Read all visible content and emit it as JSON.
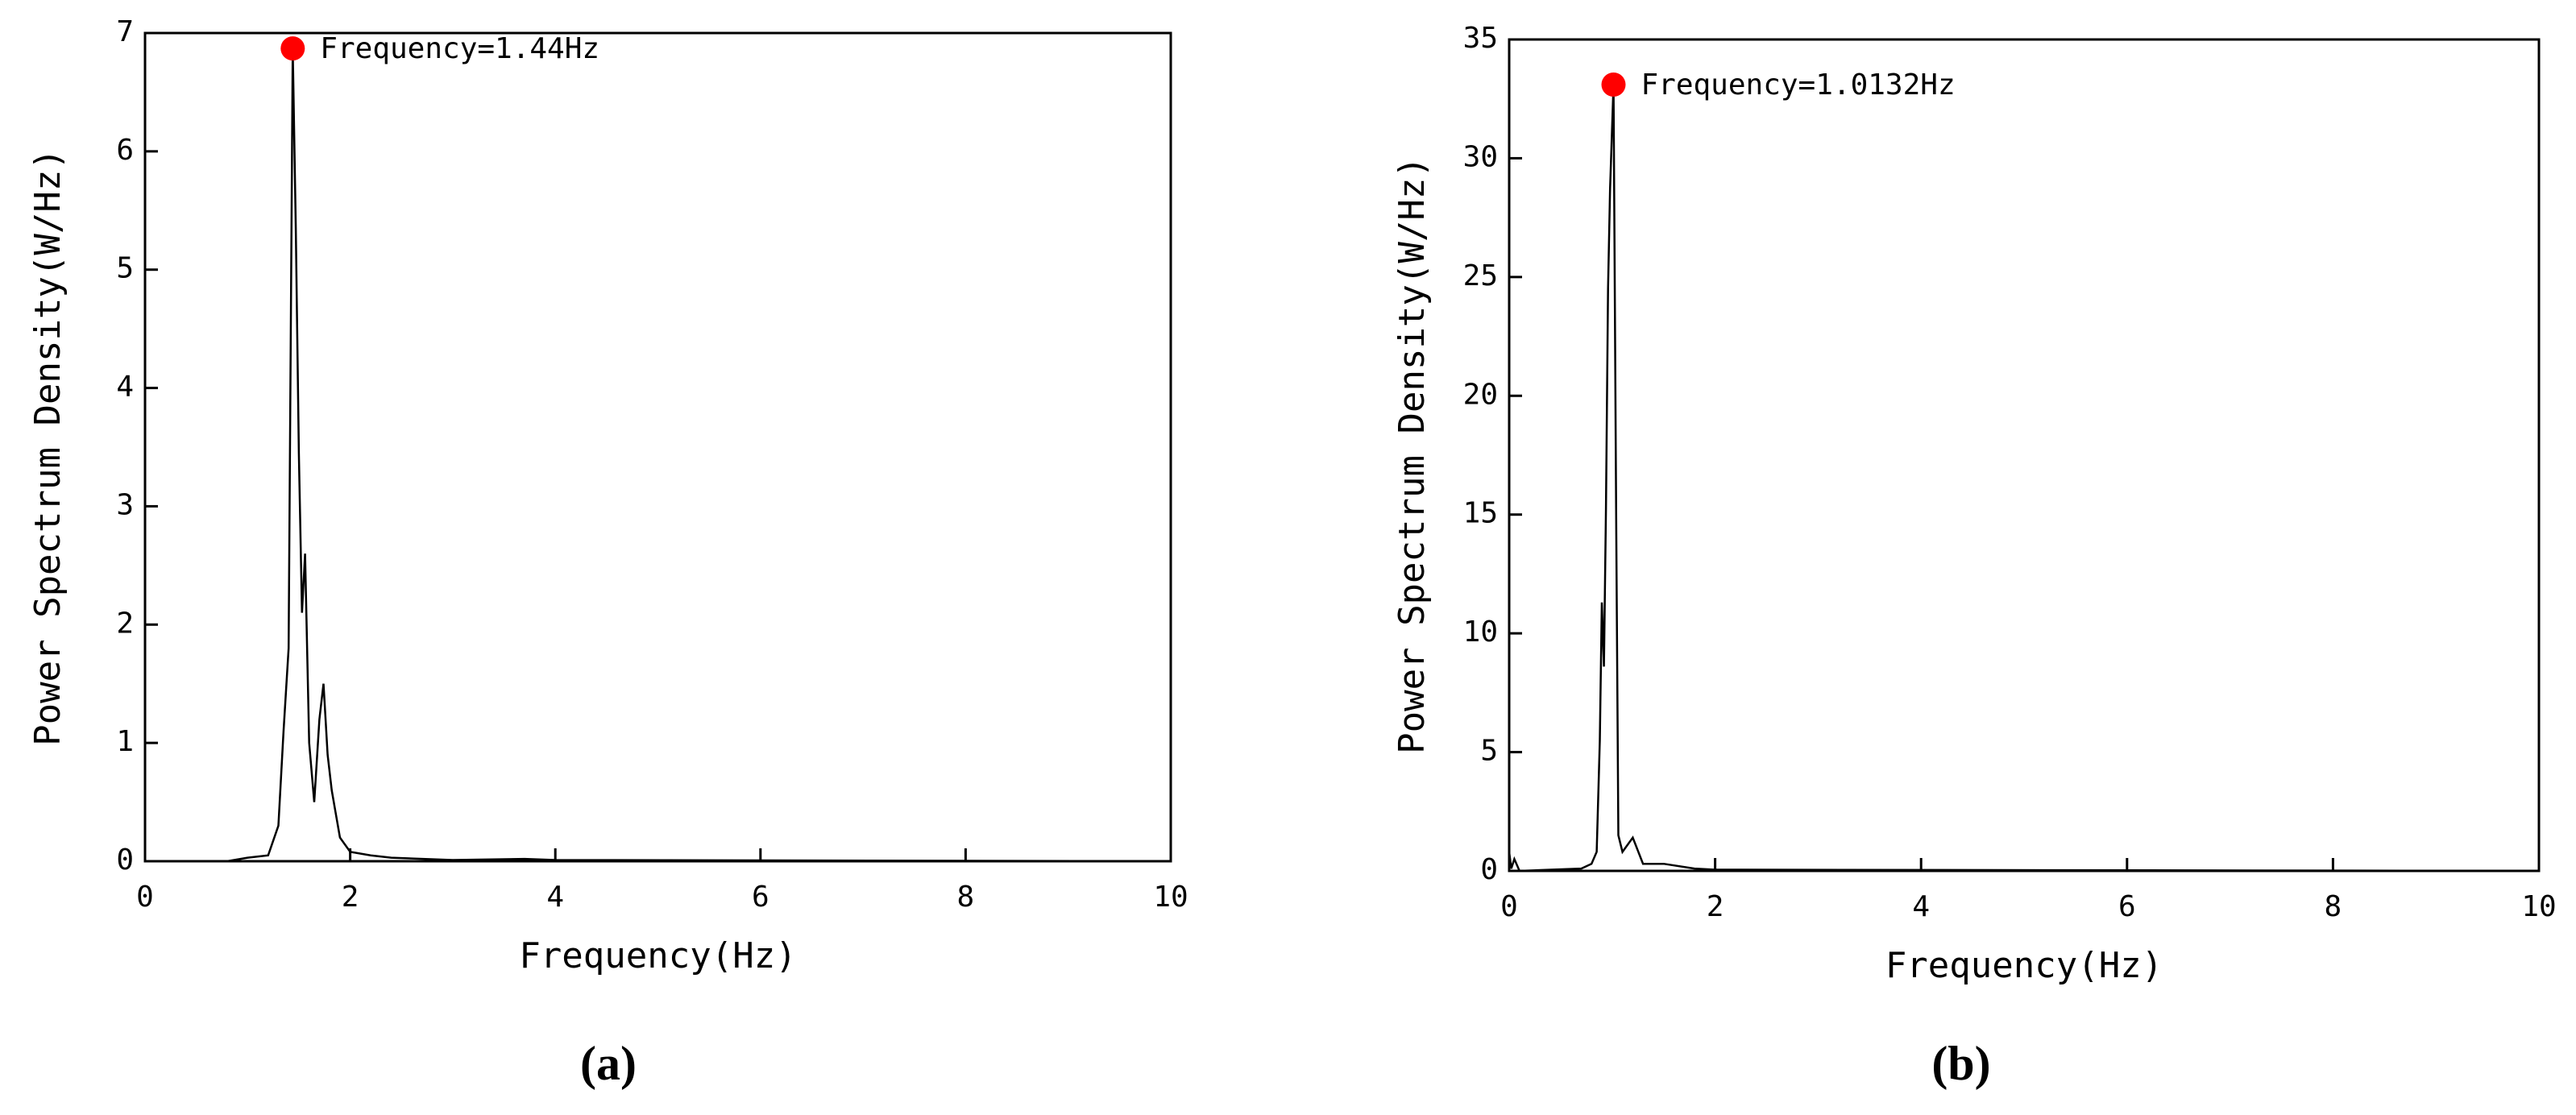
{
  "chart_data": [
    {
      "type": "line",
      "caption": "(a)",
      "x_label": "Frequency(Hz)",
      "y_label": "Power Spectrum Density(W/Hz)",
      "color": "#000000",
      "x": [
        0.8,
        1.0,
        1.2,
        1.3,
        1.35,
        1.4,
        1.44,
        1.47,
        1.5,
        1.53,
        1.56,
        1.6,
        1.65,
        1.7,
        1.74,
        1.78,
        1.82,
        1.86,
        1.9,
        2.0,
        2.2,
        2.4,
        3.0,
        3.7,
        4.0,
        10
      ],
      "values": [
        0,
        0.03,
        0.05,
        0.3,
        1.1,
        1.8,
        6.87,
        5.35,
        3.45,
        2.1,
        2.6,
        1.0,
        0.5,
        1.2,
        1.5,
        0.9,
        0.6,
        0.4,
        0.2,
        0.08,
        0.05,
        0.03,
        0.01,
        0.02,
        0.01,
        0
      ],
      "xlim": [
        0,
        10
      ],
      "ylim": [
        0,
        7
      ],
      "xticks": [
        0,
        2,
        4,
        6,
        8,
        10
      ],
      "yticks": [
        0,
        1,
        2,
        3,
        4,
        5,
        6,
        7
      ],
      "peak": {
        "x": 1.44,
        "y": 6.87,
        "label": "Frequency=1.44Hz",
        "color": "#ff0000"
      }
    },
    {
      "type": "line",
      "caption": "(b)",
      "x_label": "Frequency(Hz)",
      "y_label": "Power Spectrum Density(W/Hz)",
      "color": "#000000",
      "x": [
        0,
        0.02,
        0.05,
        0.1,
        0.7,
        0.8,
        0.85,
        0.88,
        0.9,
        0.92,
        0.94,
        0.96,
        0.98,
        1.0132,
        1.04,
        1.06,
        1.1,
        1.2,
        1.3,
        1.5,
        1.8,
        2.0,
        10
      ],
      "values": [
        0.8,
        0.1,
        0.5,
        0,
        0.1,
        0.3,
        0.8,
        5.5,
        11.3,
        8.6,
        15.2,
        24.5,
        28.7,
        33.1,
        14.3,
        1.5,
        0.8,
        1.4,
        0.3,
        0.3,
        0.1,
        0.05,
        0
      ],
      "xlim": [
        0,
        10
      ],
      "ylim": [
        0,
        35
      ],
      "xticks": [
        0,
        2,
        4,
        6,
        8,
        10
      ],
      "yticks": [
        0,
        5,
        10,
        15,
        20,
        25,
        30,
        35
      ],
      "peak": {
        "x": 1.0132,
        "y": 33.1,
        "label": "Frequency=1.0132Hz",
        "color": "#ff0000"
      }
    }
  ]
}
